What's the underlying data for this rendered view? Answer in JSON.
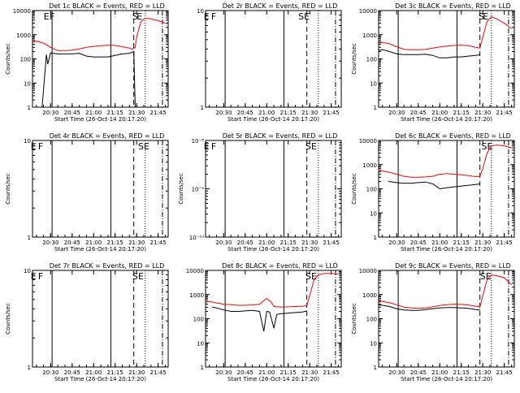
{
  "chart_data": [
    {
      "type": "line",
      "title": "Det 1c BLACK = Events, RED = LLD",
      "xlabel": "Start Time (26-Oct-14 20:17:20)",
      "ylabel": "Counts/sec",
      "xticks": [
        "20:30",
        "20:45",
        "21:00",
        "21:15",
        "21:30",
        "21:45"
      ],
      "yscale": "log",
      "ylim": [
        1,
        10000
      ],
      "yticks": [
        "1",
        "10",
        "100",
        "1000",
        "10000"
      ],
      "markers": [
        {
          "label": "E",
          "time": "20:27"
        },
        {
          "label": "F",
          "time": "20:31"
        },
        {
          "label": "S",
          "time": "21:29"
        },
        {
          "label": "E",
          "time": "21:32"
        }
      ],
      "series": [
        {
          "name": "Events",
          "color": "#000000",
          "x": [
            "20:20",
            "20:24",
            "20:27",
            "20:28",
            "20:30",
            "20:31",
            "20:35",
            "20:40",
            "20:45",
            "20:50",
            "20:55",
            "21:00",
            "21:05",
            "21:10",
            "21:15",
            "21:20",
            "21:25",
            "21:28",
            "21:29",
            "21:30",
            "21:33",
            "21:36",
            "21:40",
            "21:45",
            "21:50"
          ],
          "y": [
            1,
            1,
            150,
            60,
            180,
            170,
            160,
            160,
            160,
            170,
            130,
            120,
            120,
            120,
            140,
            160,
            170,
            200,
            1,
            1,
            1,
            1,
            1,
            1,
            1
          ]
        },
        {
          "name": "LLD",
          "color": "#ff0000",
          "x": [
            "20:17",
            "20:20",
            "20:25",
            "20:27",
            "20:30",
            "20:31",
            "20:35",
            "20:40",
            "20:45",
            "20:50",
            "20:55",
            "21:00",
            "21:05",
            "21:10",
            "21:15",
            "21:20",
            "21:25",
            "21:27",
            "21:29",
            "21:30",
            "21:33",
            "21:36",
            "21:40",
            "21:45",
            "21:50"
          ],
          "y": [
            500,
            550,
            450,
            380,
            300,
            280,
            220,
            220,
            230,
            260,
            300,
            330,
            350,
            370,
            360,
            320,
            280,
            250,
            300,
            800,
            3500,
            4800,
            4500,
            3800,
            3000
          ]
        }
      ]
    },
    {
      "type": "line",
      "title": "Det 2r BLACK = Events, RED = LLD",
      "xlabel": "Start Time (26-Oct-14 20:17:20)",
      "ylabel": "",
      "xticks": [
        "20:30",
        "20:45",
        "21:00",
        "21:15",
        "21:30",
        "21:45"
      ],
      "yscale": "log",
      "ylim": [
        1,
        10
      ],
      "yticks": [
        "1",
        "10"
      ],
      "markers": [
        {
          "label": "E",
          "time": "20:18"
        },
        {
          "label": "F",
          "time": "20:23"
        },
        {
          "label": "S",
          "time": "21:24"
        },
        {
          "label": "E",
          "time": "21:28"
        }
      ],
      "series": []
    },
    {
      "type": "line",
      "title": "Det 3c BLACK = Events, RED = LLD",
      "xlabel": "Start Time (26-Oct-14 20:17:20)",
      "ylabel": "Counts/sec",
      "xticks": [
        "20:30",
        "20:45",
        "21:00",
        "21:15",
        "21:30",
        "21:45"
      ],
      "yscale": "log",
      "ylim": [
        1,
        10000
      ],
      "yticks": [
        "1",
        "10",
        "100",
        "1000",
        "10000"
      ],
      "markers": [
        {
          "label": "S",
          "time": "21:29"
        },
        {
          "label": "E",
          "time": "21:32"
        }
      ],
      "series": [
        {
          "name": "Events",
          "color": "#000000",
          "x": [
            "20:17",
            "20:20",
            "20:25",
            "20:30",
            "20:35",
            "20:40",
            "20:45",
            "20:50",
            "20:55",
            "21:00",
            "21:05",
            "21:10",
            "21:15",
            "21:20",
            "21:25",
            "21:28"
          ],
          "y": [
            220,
            240,
            200,
            160,
            150,
            150,
            150,
            155,
            140,
            110,
            110,
            120,
            120,
            130,
            140,
            150
          ]
        },
        {
          "name": "LLD",
          "color": "#ff0000",
          "x": [
            "20:17",
            "20:20",
            "20:25",
            "20:30",
            "20:35",
            "20:40",
            "20:45",
            "20:50",
            "20:55",
            "21:00",
            "21:05",
            "21:10",
            "21:15",
            "21:20",
            "21:25",
            "21:28",
            "21:30",
            "21:33",
            "21:36",
            "21:40",
            "21:45",
            "21:50"
          ],
          "y": [
            450,
            480,
            420,
            320,
            250,
            240,
            240,
            250,
            280,
            310,
            340,
            360,
            370,
            350,
            300,
            280,
            800,
            3500,
            5500,
            4500,
            3000,
            1800
          ]
        }
      ]
    },
    {
      "type": "line",
      "title": "Det 4r BLACK = Events, RED = LLD",
      "xlabel": "Start Time (26-Oct-14 20:17:20)",
      "ylabel": "Counts/sec",
      "xticks": [
        "20:30",
        "20:45",
        "21:00",
        "21:15",
        "21:30",
        "21:45"
      ],
      "yscale": "log",
      "ylim": [
        1,
        10
      ],
      "yticks": [
        "1",
        "10"
      ],
      "markers": [
        {
          "label": "E",
          "time": "20:18"
        },
        {
          "label": "F",
          "time": "20:23"
        },
        {
          "label": "S",
          "time": "21:33"
        },
        {
          "label": "E",
          "time": "21:37"
        }
      ],
      "series": []
    },
    {
      "type": "line",
      "title": "Det 5r BLACK = Events, RED = LLD",
      "xlabel": "Start Time (26-Oct-14 20:17:20)",
      "ylabel": "Counts/sec",
      "xticks": [
        "20:30",
        "20:45",
        "21:00",
        "21:15",
        "21:30",
        "21:45"
      ],
      "yscale": "log",
      "ylim": [
        1e-10,
        1e-08
      ],
      "yticks": [
        "10⁻¹⁰",
        "10⁻⁹",
        "10⁻⁸"
      ],
      "markers": [
        {
          "label": "E",
          "time": "20:18"
        },
        {
          "label": "F",
          "time": "20:23"
        },
        {
          "label": "S",
          "time": "21:29"
        },
        {
          "label": "E",
          "time": "21:33"
        }
      ],
      "series": []
    },
    {
      "type": "line",
      "title": "Det 6c BLACK = Events, RED = LLD",
      "xlabel": "Start Time (26-Oct-14 20:17:20)",
      "ylabel": "Counts/sec",
      "xticks": [
        "20:30",
        "20:45",
        "21:00",
        "21:15",
        "21:30",
        "21:45"
      ],
      "yscale": "log",
      "ylim": [
        1,
        10000
      ],
      "yticks": [
        "1",
        "10",
        "100",
        "1000",
        "10000"
      ],
      "markers": [
        {
          "label": "S",
          "time": "21:31"
        },
        {
          "label": "E",
          "time": "21:35"
        }
      ],
      "series": [
        {
          "name": "Events",
          "color": "#000000",
          "x": [
            "20:24",
            "20:30",
            "20:35",
            "20:40",
            "20:45",
            "20:50",
            "20:55",
            "21:00",
            "21:05",
            "21:10",
            "21:15",
            "21:20",
            "21:25",
            "21:28"
          ],
          "y": [
            200,
            180,
            170,
            170,
            180,
            190,
            160,
            100,
            110,
            120,
            130,
            140,
            150,
            160
          ]
        },
        {
          "name": "LLD",
          "color": "#ff0000",
          "x": [
            "20:17",
            "20:20",
            "20:25",
            "20:30",
            "20:35",
            "20:40",
            "20:45",
            "20:50",
            "20:55",
            "21:00",
            "21:05",
            "21:10",
            "21:15",
            "21:20",
            "21:25",
            "21:28",
            "21:30",
            "21:33",
            "21:36",
            "21:40",
            "21:45",
            "21:50"
          ],
          "y": [
            600,
            550,
            480,
            400,
            330,
            300,
            300,
            310,
            330,
            400,
            430,
            400,
            380,
            350,
            320,
            330,
            700,
            3000,
            6000,
            6500,
            6000,
            5000
          ]
        }
      ]
    },
    {
      "type": "line",
      "title": "Det 7r BLACK = Events, RED = LLD",
      "xlabel": "Start Time (26-Oct-14 20:17:20)",
      "ylabel": "Counts/sec",
      "xticks": [
        "20:30",
        "20:45",
        "21:00",
        "21:15",
        "21:30",
        "21:45"
      ],
      "yscale": "log",
      "ylim": [
        1,
        10
      ],
      "yticks": [
        "1",
        "10"
      ],
      "markers": [
        {
          "label": "E",
          "time": "20:18"
        },
        {
          "label": "F",
          "time": "20:23"
        },
        {
          "label": "S",
          "time": "21:29"
        },
        {
          "label": "E",
          "time": "21:33"
        }
      ],
      "series": []
    },
    {
      "type": "line",
      "title": "Det 8c BLACK = Events, RED = LLD",
      "xlabel": "Start Time (26-Oct-14 20:17:20)",
      "ylabel": "",
      "xticks": [
        "20:30",
        "20:45",
        "21:00",
        "21:15",
        "21:30",
        "21:45"
      ],
      "yscale": "log",
      "ylim": [
        1,
        10000
      ],
      "yticks": [
        "1",
        "10",
        "100",
        "1000",
        "10000"
      ],
      "markers": [
        {
          "label": "S",
          "time": "21:29"
        },
        {
          "label": "E",
          "time": "21:33"
        }
      ],
      "series": [
        {
          "name": "Events",
          "color": "#000000",
          "x": [
            "20:22",
            "20:25",
            "20:30",
            "20:35",
            "20:40",
            "20:45",
            "20:50",
            "20:55",
            "20:58",
            "21:00",
            "21:02",
            "21:05",
            "21:07",
            "21:10",
            "21:15",
            "21:20",
            "21:25",
            "21:28"
          ],
          "y": [
            300,
            280,
            230,
            200,
            200,
            210,
            220,
            200,
            30,
            200,
            190,
            40,
            150,
            160,
            170,
            180,
            190,
            210
          ]
        },
        {
          "name": "LLD",
          "color": "#ff0000",
          "x": [
            "20:17",
            "20:20",
            "20:25",
            "20:30",
            "20:35",
            "20:40",
            "20:45",
            "20:50",
            "20:55",
            "21:00",
            "21:03",
            "21:05",
            "21:10",
            "21:15",
            "21:20",
            "21:25",
            "21:28",
            "21:30",
            "21:33",
            "21:36",
            "21:40",
            "21:45",
            "21:50"
          ],
          "y": [
            500,
            520,
            450,
            400,
            380,
            360,
            360,
            370,
            400,
            700,
            500,
            320,
            300,
            310,
            320,
            330,
            350,
            900,
            4000,
            6500,
            7500,
            7500,
            7000
          ]
        }
      ]
    },
    {
      "type": "line",
      "title": "Det 9c BLACK = Events, RED = LLD",
      "xlabel": "Start Time (26-Oct-14 20:17:20)",
      "ylabel": "Counts/sec",
      "xticks": [
        "20:30",
        "20:45",
        "21:00",
        "21:15",
        "21:30",
        "21:45"
      ],
      "yscale": "log",
      "ylim": [
        1,
        10000
      ],
      "yticks": [
        "1",
        "10",
        "100",
        "1000",
        "10000"
      ],
      "markers": [
        {
          "label": "S",
          "time": "21:30"
        },
        {
          "label": "E",
          "time": "21:34"
        }
      ],
      "series": [
        {
          "name": "Events",
          "color": "#000000",
          "x": [
            "20:17",
            "20:20",
            "20:25",
            "20:30",
            "20:35",
            "20:40",
            "20:45",
            "20:50",
            "20:55",
            "21:00",
            "21:05",
            "21:10",
            "21:15",
            "21:20",
            "21:25",
            "21:28"
          ],
          "y": [
            380,
            360,
            320,
            260,
            230,
            220,
            220,
            240,
            260,
            280,
            290,
            290,
            280,
            270,
            240,
            230
          ]
        },
        {
          "name": "LLD",
          "color": "#ff0000",
          "x": [
            "20:17",
            "20:20",
            "20:25",
            "20:30",
            "20:35",
            "20:40",
            "20:45",
            "20:50",
            "20:55",
            "21:00",
            "21:05",
            "21:10",
            "21:15",
            "21:20",
            "21:25",
            "21:28",
            "21:30",
            "21:33",
            "21:36",
            "21:40",
            "21:45",
            "21:50"
          ],
          "y": [
            550,
            520,
            460,
            380,
            300,
            280,
            270,
            280,
            310,
            350,
            380,
            400,
            390,
            370,
            330,
            310,
            900,
            4000,
            6500,
            6000,
            5000,
            2500
          ]
        }
      ]
    }
  ]
}
